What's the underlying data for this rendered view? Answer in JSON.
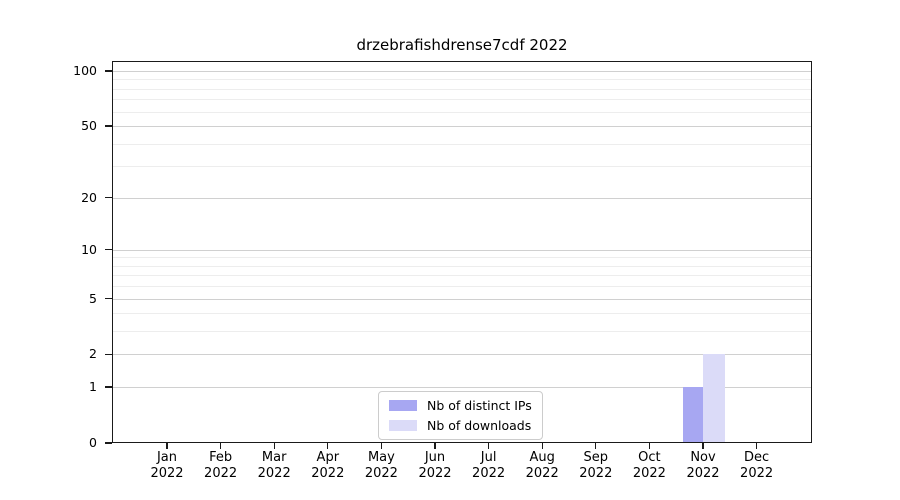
{
  "chart_data": {
    "type": "bar",
    "title": "drzebrafishdrense7cdf 2022",
    "categories": [
      "Jan 2022",
      "Feb 2022",
      "Mar 2022",
      "Apr 2022",
      "May 2022",
      "Jun 2022",
      "Jul 2022",
      "Aug 2022",
      "Sep 2022",
      "Oct 2022",
      "Nov 2022",
      "Dec 2022"
    ],
    "series": [
      {
        "name": "Nb of distinct IPs",
        "color": "#a7a7f2",
        "values": [
          0,
          0,
          0,
          0,
          0,
          0,
          0,
          0,
          0,
          0,
          1,
          0
        ]
      },
      {
        "name": "Nb of downloads",
        "color": "#dbdbf8",
        "values": [
          0,
          0,
          0,
          0,
          0,
          0,
          0,
          0,
          0,
          0,
          2,
          0
        ]
      }
    ],
    "yticks": [
      0,
      1,
      2,
      5,
      10,
      20,
      50,
      100
    ],
    "minor_gridlines": [
      3,
      4,
      6,
      7,
      8,
      9,
      30,
      40,
      60,
      70,
      80,
      90
    ],
    "scale": "log1p",
    "ylim": [
      0,
      113
    ],
    "xlabel": "",
    "ylabel": "",
    "grid": true,
    "legend_position": "bottom-center",
    "colors": {
      "major_grid": "#d0d0d0",
      "minor_grid": "#ededed",
      "spine": "#1a1a1a",
      "background": "#ffffff"
    }
  }
}
